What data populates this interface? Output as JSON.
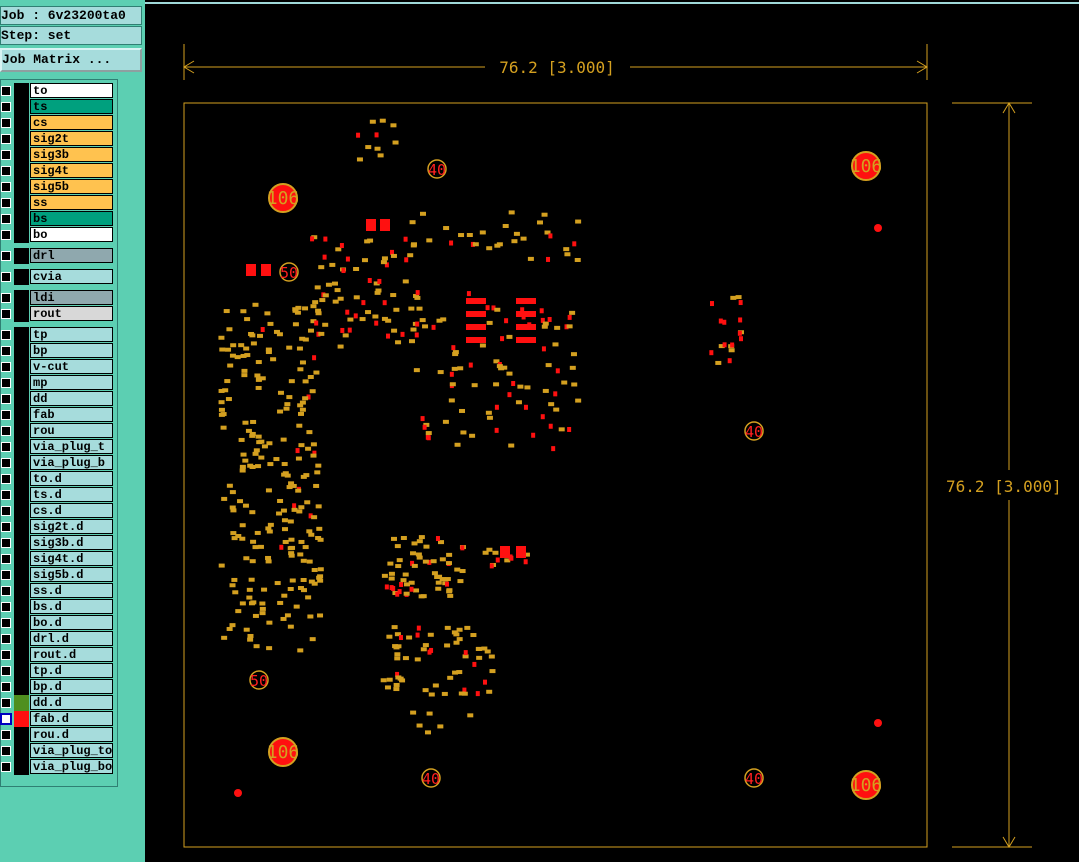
{
  "header": {
    "job": "Job : 6v23200ta0",
    "step": "Step: set",
    "matrix_button": "Job Matrix ..."
  },
  "layer_groups": [
    [
      {
        "name": "to",
        "color": "#ffffff"
      },
      {
        "name": "ts",
        "color": "#00a07e"
      },
      {
        "name": "cs",
        "color": "#ffc24f"
      },
      {
        "name": "sig2t",
        "color": "#ffc24f"
      },
      {
        "name": "sig3b",
        "color": "#ffc24f"
      },
      {
        "name": "sig4t",
        "color": "#ffc24f"
      },
      {
        "name": "sig5b",
        "color": "#ffc24f"
      },
      {
        "name": "ss",
        "color": "#ffc24f"
      },
      {
        "name": "bs",
        "color": "#00a07e"
      },
      {
        "name": "bo",
        "color": "#ffffff"
      }
    ],
    [
      {
        "name": "drl",
        "color": "#8fa8ae"
      }
    ],
    [
      {
        "name": "cvia",
        "color": "#a6dcdc"
      }
    ],
    [
      {
        "name": "ldi",
        "color": "#8fa8ae"
      },
      {
        "name": "rout",
        "color": "#d8d8d8"
      }
    ],
    [
      {
        "name": "tp",
        "color": "#a6dcdc"
      },
      {
        "name": "bp",
        "color": "#a6dcdc"
      },
      {
        "name": "v-cut",
        "color": "#a6dcdc"
      },
      {
        "name": "mp",
        "color": "#a6dcdc"
      },
      {
        "name": "dd",
        "color": "#a6dcdc"
      },
      {
        "name": "fab",
        "color": "#a6dcdc"
      },
      {
        "name": "rou",
        "color": "#a6dcdc"
      },
      {
        "name": "via_plug_t",
        "color": "#a6dcdc"
      },
      {
        "name": "via_plug_b",
        "color": "#a6dcdc"
      },
      {
        "name": "to.d",
        "color": "#a6dcdc"
      },
      {
        "name": "ts.d",
        "color": "#a6dcdc"
      },
      {
        "name": "cs.d",
        "color": "#a6dcdc"
      },
      {
        "name": "sig2t.d",
        "color": "#a6dcdc"
      },
      {
        "name": "sig3b.d",
        "color": "#a6dcdc"
      },
      {
        "name": "sig4t.d",
        "color": "#a6dcdc"
      },
      {
        "name": "sig5b.d",
        "color": "#a6dcdc"
      },
      {
        "name": "ss.d",
        "color": "#a6dcdc"
      },
      {
        "name": "bs.d",
        "color": "#a6dcdc"
      },
      {
        "name": "bo.d",
        "color": "#a6dcdc"
      },
      {
        "name": "drl.d",
        "color": "#a6dcdc"
      },
      {
        "name": "rout.d",
        "color": "#a6dcdc"
      },
      {
        "name": "tp.d",
        "color": "#a6dcdc"
      },
      {
        "name": "bp.d",
        "color": "#a6dcdc"
      },
      {
        "name": "dd.d",
        "color": "#a6dcdc"
      },
      {
        "name": "fab.d",
        "color": "#a6dcdc"
      },
      {
        "name": "rou.d",
        "color": "#a6dcdc"
      },
      {
        "name": "via_plug_top",
        "color": "#a6dcdc"
      },
      {
        "name": "via_plug_bot",
        "color": "#a6dcdc"
      }
    ]
  ],
  "dimensions": {
    "width": "76.2 [3.000]",
    "height": "76.2 [3.000]"
  },
  "holes": [
    {
      "label": "106"
    },
    {
      "label": "106"
    },
    {
      "label": "106"
    },
    {
      "label": "106"
    },
    {
      "label": "40"
    },
    {
      "label": "40"
    },
    {
      "label": "40"
    },
    {
      "label": "40"
    },
    {
      "label": "50"
    },
    {
      "label": "50"
    }
  ]
}
